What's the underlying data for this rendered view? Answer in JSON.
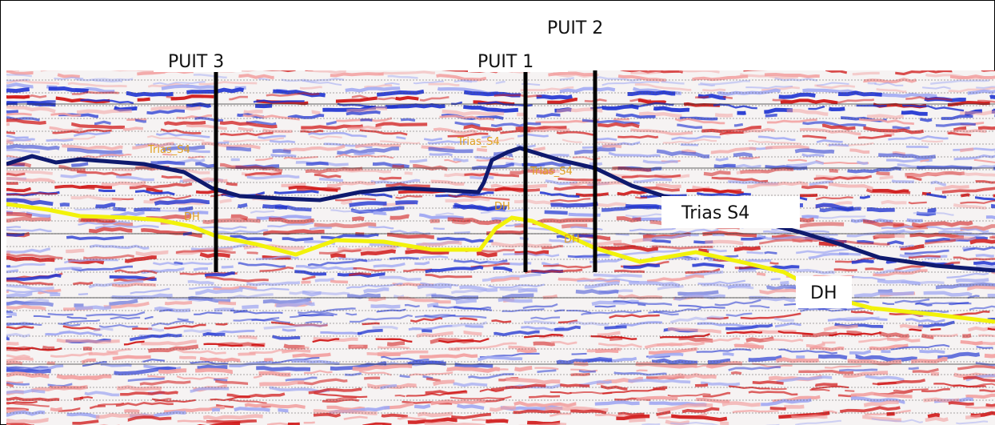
{
  "wells": [
    {
      "label": "PUIT 3"
    },
    {
      "label": "PUIT 1"
    },
    {
      "label": "PUIT 2"
    }
  ],
  "horizon_labels": [
    "Trias_S4",
    "Trias_S4",
    "Trias_S4",
    "DH",
    "DH",
    "DH"
  ],
  "callouts": [
    "Trias S4",
    "DH"
  ]
}
